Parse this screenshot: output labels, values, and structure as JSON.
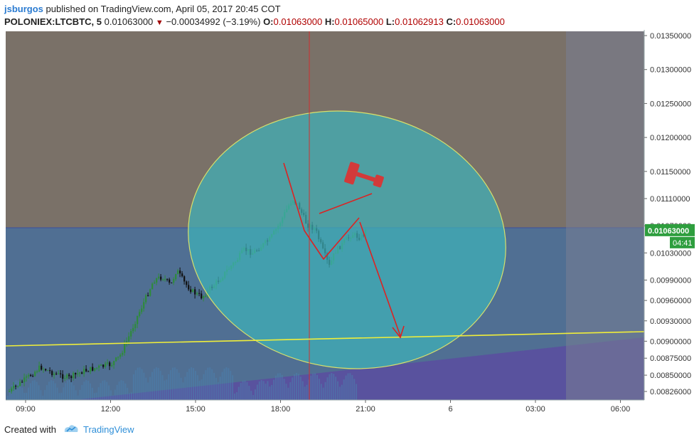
{
  "header": {
    "author": "jsburgos",
    "published_text": "published on TradingView.com, April 05, 2017 20:45 COT",
    "symbol": "POLONIEX:LTCBTC, 5",
    "last": "0.01063000",
    "change": "−0.00034992 (−3.19%)",
    "open_label": "O:",
    "open": "0.01063000",
    "high_label": "H:",
    "high": "0.01065000",
    "low_label": "L:",
    "low": "0.01062913",
    "close_label": "C:",
    "close": "0.01063000"
  },
  "footer": {
    "created_with": "Created with",
    "brand": "TradingView"
  },
  "colors": {
    "chart_bg": "#7a7168",
    "blue_zone": "#4e6f96",
    "right_shade": "#787d94",
    "purple_wedge": "#5a4fa0",
    "ellipse_fill": "#3fb1b8",
    "ellipse_stroke": "#d8e06a",
    "trendline": "#f0ee3a",
    "drawing_red": "#dd2222",
    "candle_up": "#2e8b3a",
    "candle_down": "#111111",
    "price_badge": "#2e9e3e",
    "axis_bg": "#ffffff"
  },
  "chart_data": {
    "type": "candlestick",
    "symbol": "POLONIEX:LTCBTC",
    "interval": "5",
    "x_ticks": [
      "09:00",
      "12:00",
      "15:00",
      "18:00",
      "21:00",
      "6",
      "03:00",
      "06:00"
    ],
    "y_ticks": [
      "0.01350000",
      "0.01300000",
      "0.01250000",
      "0.01200000",
      "0.01150000",
      "0.01110000",
      "0.01070000",
      "0.01030000",
      "0.00990000",
      "0.00960000",
      "0.00930000",
      "0.00900000",
      "0.00875000",
      "0.00850000",
      "0.00826000"
    ],
    "last_price_label": "0.01063000",
    "countdown": "04:41",
    "hours_axis": {
      "first_tick_hour": 9,
      "hours_per_tick": 3,
      "tick_labels_from_hour_9": [
        9,
        12,
        15,
        18,
        21,
        24,
        27,
        30
      ]
    },
    "price_series_hours_from_09": [
      [
        -0.6,
        0.00826
      ],
      [
        0,
        0.00845
      ],
      [
        0.5,
        0.00862
      ],
      [
        1.0,
        0.00852
      ],
      [
        1.5,
        0.00846
      ],
      [
        2.0,
        0.00856
      ],
      [
        2.5,
        0.00861
      ],
      [
        3.0,
        0.00866
      ],
      [
        3.3,
        0.00878
      ],
      [
        3.6,
        0.00905
      ],
      [
        3.9,
        0.00935
      ],
      [
        4.2,
        0.00962
      ],
      [
        4.5,
        0.0099
      ],
      [
        4.8,
        0.00995
      ],
      [
        5.1,
        0.00982
      ],
      [
        5.3,
        0.01005
      ],
      [
        5.6,
        0.00985
      ],
      [
        5.9,
        0.00972
      ],
      [
        6.2,
        0.00965
      ],
      [
        6.5,
        0.00978
      ],
      [
        6.8,
        0.0099
      ],
      [
        7.1,
        0.01005
      ],
      [
        7.4,
        0.01018
      ],
      [
        7.7,
        0.01035
      ],
      [
        8.0,
        0.0103
      ],
      [
        8.3,
        0.0104
      ],
      [
        8.6,
        0.0105
      ],
      [
        8.9,
        0.0107
      ],
      [
        9.2,
        0.01095
      ],
      [
        9.4,
        0.0111
      ],
      [
        9.6,
        0.011
      ],
      [
        9.9,
        0.01072
      ],
      [
        10.2,
        0.01065
      ],
      [
        10.5,
        0.0103
      ],
      [
        10.7,
        0.0101
      ],
      [
        10.9,
        0.01032
      ],
      [
        11.2,
        0.01045
      ],
      [
        11.5,
        0.01058
      ],
      [
        11.8,
        0.01052
      ],
      [
        12.0,
        0.01063
      ]
    ]
  }
}
